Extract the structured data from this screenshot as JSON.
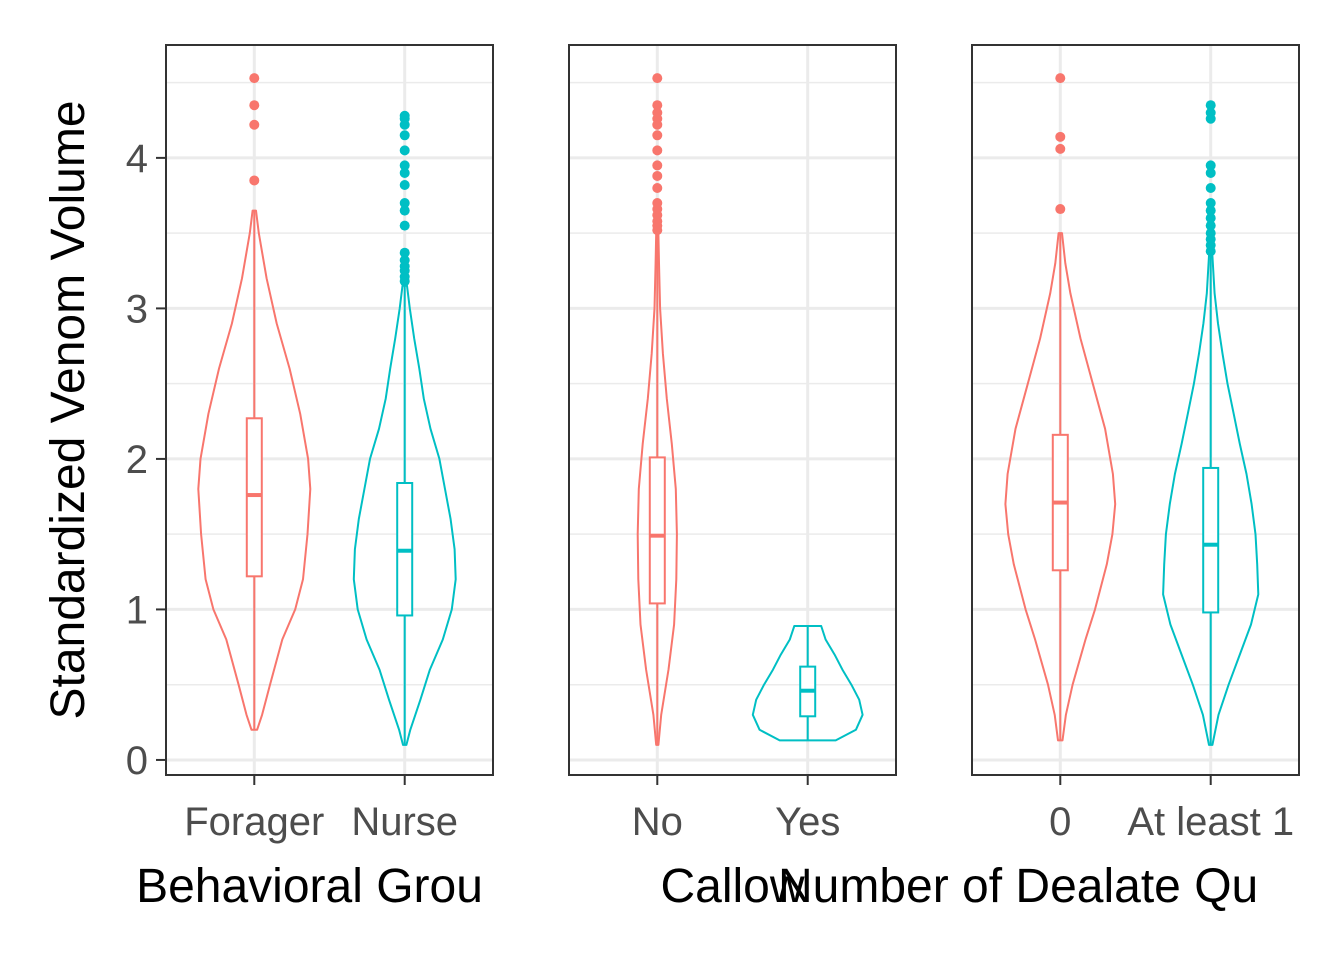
{
  "colors": {
    "group_a": "#F8766D",
    "group_b": "#00BFC4",
    "frame": "#333333",
    "grid": "#EBEBEB"
  },
  "chart_data": {
    "type": "violin",
    "ylabel": "Standardized Venom Volume",
    "ylim": [
      -0.1,
      4.75
    ],
    "yticks": [
      0,
      1,
      2,
      3,
      4
    ],
    "grid": true,
    "panels": [
      {
        "xlabel": "Behavioral Grou",
        "categories": [
          {
            "label": "Forager",
            "q1": 1.22,
            "median": 1.76,
            "q3": 2.27,
            "whisker_low": 0.2,
            "whisker_high": 3.65,
            "violin_min": 0.2,
            "violin_max": 3.65,
            "outliers": [
              3.85,
              4.22,
              4.35,
              4.53
            ],
            "density": [
              [
                0.2,
                0.05
              ],
              [
                0.3,
                0.14
              ],
              [
                0.5,
                0.28
              ],
              [
                0.8,
                0.5
              ],
              [
                1.0,
                0.73
              ],
              [
                1.2,
                0.87
              ],
              [
                1.5,
                0.95
              ],
              [
                1.8,
                1.0
              ],
              [
                2.0,
                0.96
              ],
              [
                2.3,
                0.82
              ],
              [
                2.6,
                0.63
              ],
              [
                2.9,
                0.4
              ],
              [
                3.2,
                0.22
              ],
              [
                3.5,
                0.08
              ],
              [
                3.65,
                0.03
              ]
            ]
          },
          {
            "label": "Nurse",
            "q1": 0.96,
            "median": 1.39,
            "q3": 1.84,
            "whisker_low": 0.1,
            "whisker_high": 3.15,
            "violin_min": 0.1,
            "violin_max": 3.15,
            "outliers": [
              3.18,
              3.21,
              3.25,
              3.28,
              3.32,
              3.37,
              3.55,
              3.65,
              3.7,
              3.82,
              3.9,
              3.95,
              4.05,
              4.15,
              4.22,
              4.26,
              4.28
            ],
            "density": [
              [
                0.1,
                0.03
              ],
              [
                0.2,
                0.1
              ],
              [
                0.4,
                0.28
              ],
              [
                0.6,
                0.45
              ],
              [
                0.8,
                0.68
              ],
              [
                1.0,
                0.84
              ],
              [
                1.2,
                0.91
              ],
              [
                1.4,
                0.89
              ],
              [
                1.6,
                0.82
              ],
              [
                1.8,
                0.72
              ],
              [
                2.0,
                0.62
              ],
              [
                2.2,
                0.46
              ],
              [
                2.4,
                0.34
              ],
              [
                2.6,
                0.26
              ],
              [
                2.8,
                0.17
              ],
              [
                3.0,
                0.09
              ],
              [
                3.15,
                0.04
              ]
            ]
          }
        ]
      },
      {
        "xlabel": "Callow",
        "categories": [
          {
            "label": "No",
            "q1": 1.04,
            "median": 1.49,
            "q3": 2.01,
            "whisker_low": 0.1,
            "whisker_high": 3.5,
            "violin_min": 0.1,
            "violin_max": 3.5,
            "outliers": [
              3.52,
              3.55,
              3.58,
              3.62,
              3.66,
              3.7,
              3.8,
              3.88,
              3.95,
              4.05,
              4.15,
              4.22,
              4.26,
              4.3,
              4.35,
              4.53
            ],
            "density": [
              [
                0.1,
                0.02
              ],
              [
                0.3,
                0.07
              ],
              [
                0.6,
                0.2
              ],
              [
                0.9,
                0.3
              ],
              [
                1.2,
                0.34
              ],
              [
                1.5,
                0.35
              ],
              [
                1.8,
                0.33
              ],
              [
                2.1,
                0.26
              ],
              [
                2.4,
                0.17
              ],
              [
                2.7,
                0.1
              ],
              [
                3.0,
                0.05
              ],
              [
                3.3,
                0.03
              ],
              [
                3.5,
                0.02
              ]
            ]
          },
          {
            "label": "Yes",
            "q1": 0.29,
            "median": 0.46,
            "q3": 0.62,
            "whisker_low": 0.13,
            "whisker_high": 0.89,
            "violin_min": 0.13,
            "violin_max": 0.89,
            "outliers": [],
            "density": [
              [
                0.13,
                0.5
              ],
              [
                0.2,
                0.86
              ],
              [
                0.3,
                0.98
              ],
              [
                0.4,
                0.92
              ],
              [
                0.5,
                0.78
              ],
              [
                0.6,
                0.62
              ],
              [
                0.7,
                0.48
              ],
              [
                0.8,
                0.32
              ],
              [
                0.89,
                0.24
              ]
            ]
          }
        ]
      },
      {
        "xlabel": "Number of Dealate Qu",
        "categories": [
          {
            "label": "0",
            "q1": 1.26,
            "median": 1.71,
            "q3": 2.16,
            "whisker_low": 0.13,
            "whisker_high": 3.5,
            "violin_min": 0.13,
            "violin_max": 3.5,
            "outliers": [
              3.66,
              4.06,
              4.14,
              4.53
            ],
            "density": [
              [
                0.13,
                0.04
              ],
              [
                0.3,
                0.1
              ],
              [
                0.5,
                0.22
              ],
              [
                0.8,
                0.45
              ],
              [
                1.0,
                0.62
              ],
              [
                1.3,
                0.83
              ],
              [
                1.5,
                0.93
              ],
              [
                1.7,
                0.98
              ],
              [
                1.9,
                0.94
              ],
              [
                2.2,
                0.8
              ],
              [
                2.5,
                0.58
              ],
              [
                2.8,
                0.36
              ],
              [
                3.1,
                0.18
              ],
              [
                3.3,
                0.09
              ],
              [
                3.5,
                0.03
              ]
            ]
          },
          {
            "label": "At least 1",
            "q1": 0.98,
            "median": 1.43,
            "q3": 1.94,
            "whisker_low": 0.1,
            "whisker_high": 3.35,
            "violin_min": 0.1,
            "violin_max": 3.35,
            "outliers": [
              3.38,
              3.42,
              3.46,
              3.5,
              3.55,
              3.6,
              3.65,
              3.7,
              3.8,
              3.9,
              3.95,
              4.26,
              4.3,
              4.35
            ],
            "density": [
              [
                0.1,
                0.03
              ],
              [
                0.3,
                0.14
              ],
              [
                0.5,
                0.32
              ],
              [
                0.7,
                0.52
              ],
              [
                0.9,
                0.72
              ],
              [
                1.1,
                0.85
              ],
              [
                1.3,
                0.83
              ],
              [
                1.5,
                0.8
              ],
              [
                1.7,
                0.73
              ],
              [
                1.9,
                0.64
              ],
              [
                2.1,
                0.52
              ],
              [
                2.3,
                0.41
              ],
              [
                2.5,
                0.3
              ],
              [
                2.7,
                0.21
              ],
              [
                2.9,
                0.13
              ],
              [
                3.1,
                0.07
              ],
              [
                3.35,
                0.03
              ]
            ]
          }
        ]
      }
    ]
  }
}
